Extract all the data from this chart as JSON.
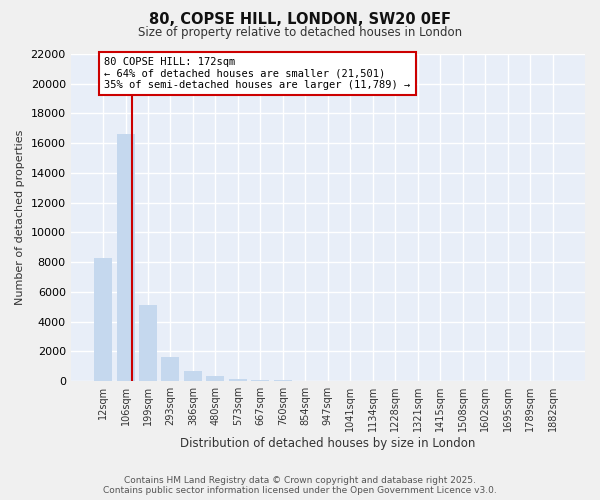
{
  "title": "80, COPSE HILL, LONDON, SW20 0EF",
  "subtitle": "Size of property relative to detached houses in London",
  "xlabel": "Distribution of detached houses by size in London",
  "ylabel": "Number of detached properties",
  "property_label": "80 COPSE HILL: 172sqm",
  "annotation_line1": "← 64% of detached houses are smaller (21,501)",
  "annotation_line2": "35% of semi-detached houses are larger (11,789) →",
  "bar_color": "#c5d8ee",
  "line_color": "#cc0000",
  "box_edge_color": "#cc0000",
  "background_color": "#e8eef8",
  "grid_color": "#ffffff",
  "categories": [
    "12sqm",
    "106sqm",
    "199sqm",
    "293sqm",
    "386sqm",
    "480sqm",
    "573sqm",
    "667sqm",
    "760sqm",
    "854sqm",
    "947sqm",
    "1041sqm",
    "1134sqm",
    "1228sqm",
    "1321sqm",
    "1415sqm",
    "1508sqm",
    "1602sqm",
    "1695sqm",
    "1789sqm",
    "1882sqm"
  ],
  "values": [
    8300,
    16600,
    5100,
    1600,
    700,
    350,
    170,
    90,
    50,
    30,
    20,
    15,
    10,
    8,
    6,
    5,
    4,
    3,
    2,
    2,
    1
  ],
  "ylim": [
    0,
    22000
  ],
  "yticks": [
    0,
    2000,
    4000,
    6000,
    8000,
    10000,
    12000,
    14000,
    16000,
    18000,
    20000,
    22000
  ],
  "property_bin_index": 1,
  "footer_line1": "Contains HM Land Registry data © Crown copyright and database right 2025.",
  "footer_line2": "Contains public sector information licensed under the Open Government Licence v3.0."
}
